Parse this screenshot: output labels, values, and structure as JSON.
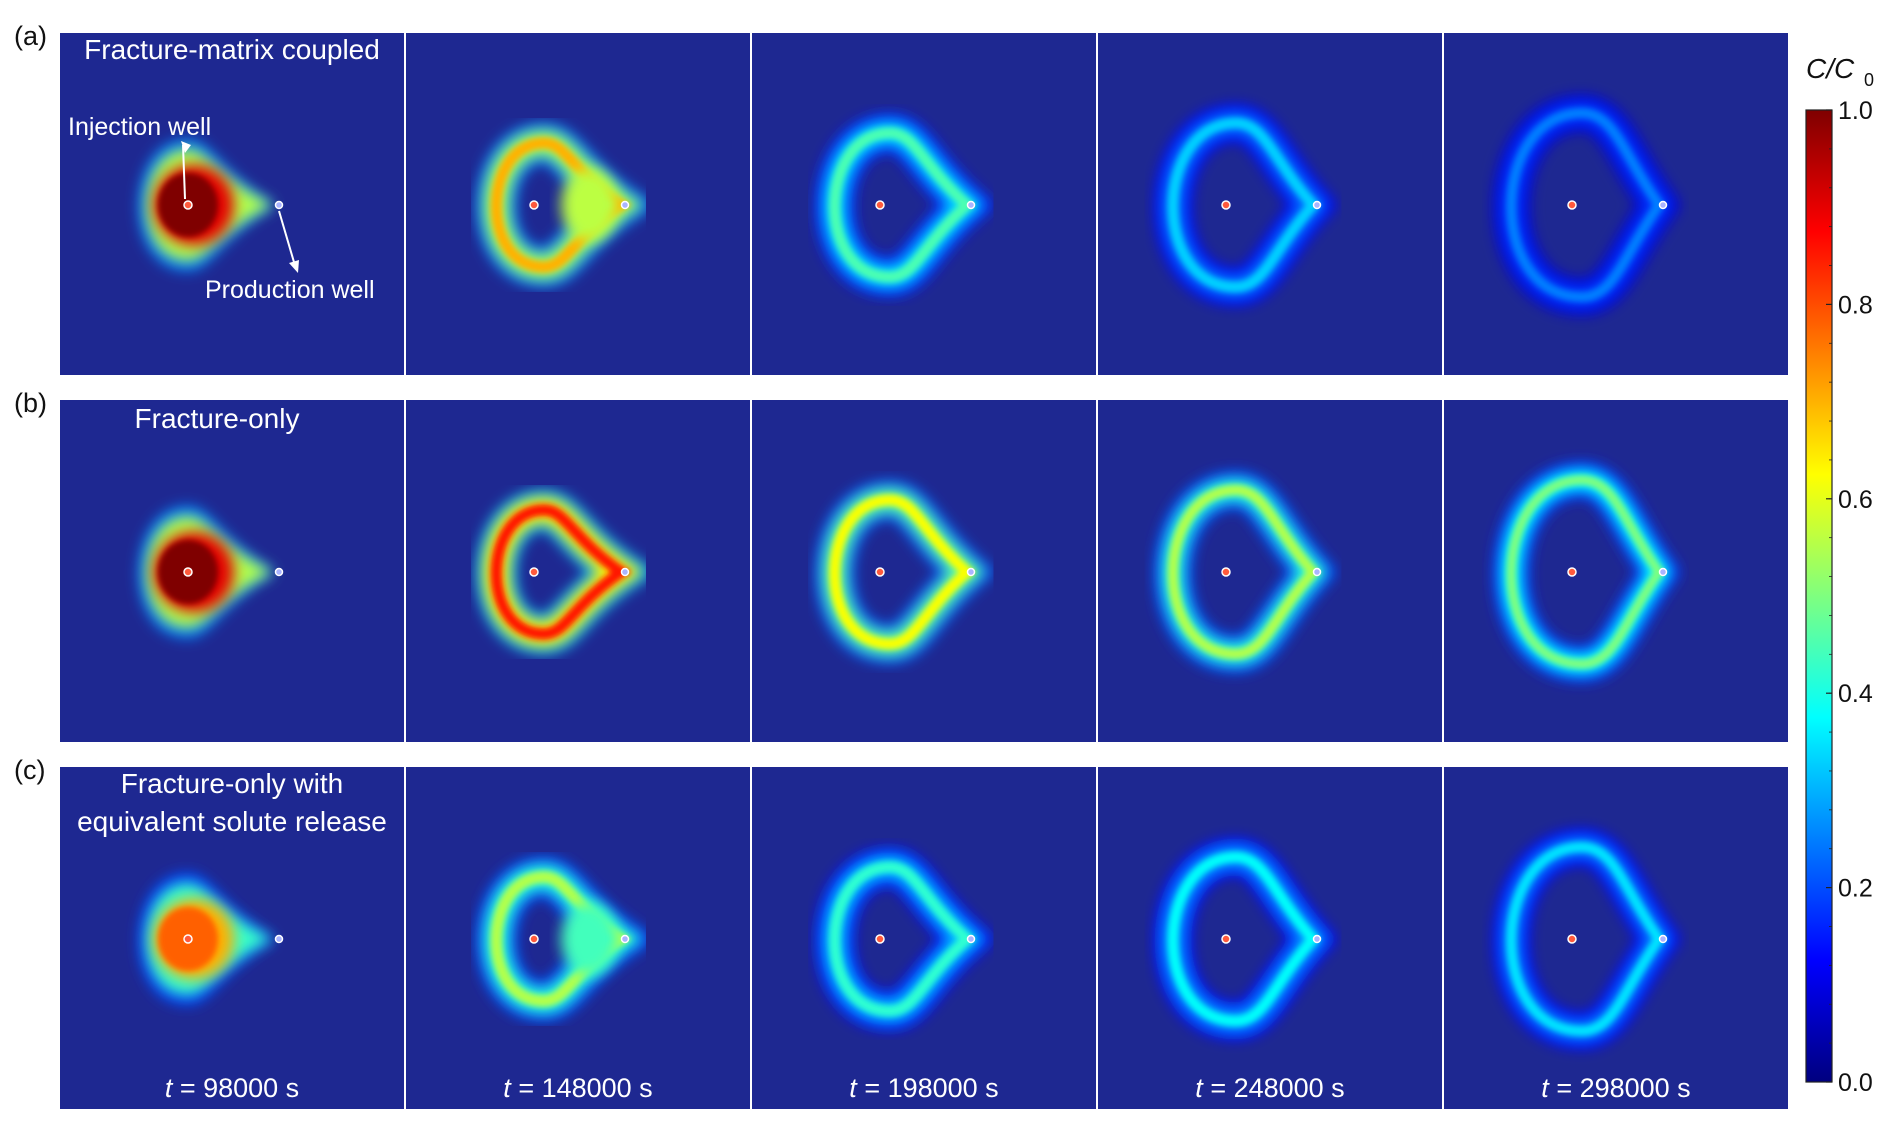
{
  "rows": [
    {
      "label": "(a)",
      "title_lines": [
        "Fracture-matrix coupled"
      ],
      "style": "coupled",
      "annotations": {
        "injection": "Injection well",
        "production": "Production well"
      }
    },
    {
      "label": "(b)",
      "title_lines": [
        "Fracture-only"
      ],
      "style": "fracture"
    },
    {
      "label": "(c)",
      "title_lines": [
        "Fracture-only with",
        "equivalent solute release"
      ],
      "style": "equivalent"
    }
  ],
  "columns": [
    {
      "time_label_prefix": "t",
      "time_label_value": " = 98000 s"
    },
    {
      "time_label_prefix": "t",
      "time_label_value": " = 148000 s"
    },
    {
      "time_label_prefix": "t",
      "time_label_value": " = 198000 s"
    },
    {
      "time_label_prefix": "t",
      "time_label_value": " = 248000 s"
    },
    {
      "time_label_prefix": "t",
      "time_label_value": " = 298000 s"
    }
  ],
  "colorbar": {
    "title_main": "C/C",
    "title_sub": "0",
    "range": [
      0.0,
      1.0
    ],
    "tick_labels": [
      "1.0",
      "0.8",
      "0.6",
      "0.4",
      "0.2",
      "0.0"
    ],
    "colormap": "jet",
    "stops": [
      "#00007f",
      "#0000ff",
      "#007fff",
      "#00ffff",
      "#7fff7f",
      "#ffff00",
      "#ff7f00",
      "#ff0000",
      "#7f0000"
    ]
  },
  "plume_peak": [
    [
      1.0,
      0.7,
      0.45,
      0.33,
      0.25
    ],
    [
      1.0,
      0.85,
      0.62,
      0.55,
      0.5
    ],
    [
      0.78,
      0.55,
      0.42,
      0.38,
      0.35
    ]
  ],
  "colors": {
    "background": "#1e2891",
    "divider": "#ffffff",
    "injection_well": "#ff5a3c",
    "production_well": "#aab4ff"
  }
}
